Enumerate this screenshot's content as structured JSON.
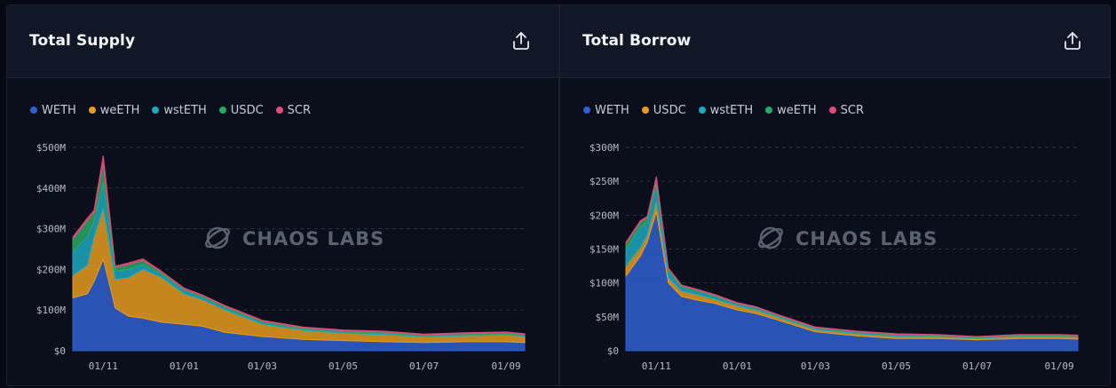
{
  "charts": [
    {
      "title": "Total Supply",
      "export_icon": "share-upload-icon",
      "legend": [
        {
          "name": "WETH",
          "color": "#2f5fd0"
        },
        {
          "name": "weETH",
          "color": "#e89b1e"
        },
        {
          "name": "wstETH",
          "color": "#1fa8c0"
        },
        {
          "name": "USDC",
          "color": "#2aa765"
        },
        {
          "name": "SCR",
          "color": "#e04a7a"
        }
      ],
      "watermark": "CHAOS LABS"
    },
    {
      "title": "Total Borrow",
      "export_icon": "share-upload-icon",
      "legend": [
        {
          "name": "WETH",
          "color": "#2f5fd0"
        },
        {
          "name": "USDC",
          "color": "#e89b1e"
        },
        {
          "name": "wstETH",
          "color": "#1fa8c0"
        },
        {
          "name": "weETH",
          "color": "#2aa765"
        },
        {
          "name": "SCR",
          "color": "#e04a7a"
        }
      ],
      "watermark": "CHAOS LABS"
    }
  ],
  "chart_data": [
    {
      "type": "area",
      "stacked": true,
      "title": "Total Supply",
      "x_tick_labels": [
        "01/11",
        "01/01",
        "01/03",
        "01/05",
        "01/07",
        "01/09"
      ],
      "x": [
        "09/10",
        "20/10",
        "25/10",
        "01/11",
        "10/11",
        "20/11",
        "01/12",
        "15/12",
        "01/01",
        "15/01",
        "01/02",
        "01/03",
        "01/04",
        "01/05",
        "01/06",
        "01/07",
        "01/08",
        "01/09",
        "15/09"
      ],
      "y_ticks": [
        "$0",
        "$100M",
        "$200M",
        "$300M",
        "$400M",
        "$500M"
      ],
      "ylim": [
        0,
        500
      ],
      "y_unit": "$M",
      "grid": true,
      "legend_position": "top-left",
      "series": [
        {
          "name": "WETH",
          "values": [
            130,
            140,
            170,
            225,
            105,
            85,
            80,
            70,
            65,
            60,
            45,
            35,
            28,
            25,
            22,
            20,
            22,
            22,
            20
          ]
        },
        {
          "name": "weETH",
          "values": [
            55,
            70,
            110,
            125,
            70,
            95,
            120,
            110,
            75,
            65,
            55,
            30,
            22,
            18,
            18,
            14,
            15,
            17,
            15
          ]
        },
        {
          "name": "wstETH",
          "values": [
            60,
            70,
            40,
            65,
            20,
            20,
            12,
            8,
            8,
            6,
            5,
            4,
            3,
            3,
            3,
            2,
            2,
            2,
            2
          ]
        },
        {
          "name": "USDC",
          "values": [
            30,
            40,
            20,
            45,
            10,
            12,
            10,
            5,
            4,
            4,
            4,
            4,
            3,
            3,
            3,
            3,
            3,
            3,
            3
          ]
        },
        {
          "name": "SCR",
          "values": [
            5,
            6,
            5,
            20,
            3,
            4,
            4,
            2,
            2,
            2,
            2,
            2,
            2,
            2,
            2,
            2,
            2,
            2,
            2
          ]
        }
      ]
    },
    {
      "type": "area",
      "stacked": true,
      "title": "Total Borrow",
      "x_tick_labels": [
        "01/11",
        "01/01",
        "01/03",
        "01/05",
        "01/07",
        "01/09"
      ],
      "x": [
        "09/10",
        "20/10",
        "25/10",
        "01/11",
        "10/11",
        "20/11",
        "01/12",
        "15/12",
        "01/01",
        "15/01",
        "01/02",
        "01/03",
        "01/04",
        "01/05",
        "01/06",
        "01/07",
        "01/08",
        "01/09",
        "15/09"
      ],
      "y_ticks": [
        "$0",
        "$50M",
        "$100M",
        "$150M",
        "$200M",
        "$250M",
        "$300M"
      ],
      "ylim": [
        0,
        300
      ],
      "y_unit": "$M",
      "grid": true,
      "legend_position": "top-left",
      "series": [
        {
          "name": "WETH",
          "values": [
            110,
            140,
            160,
            205,
            100,
            80,
            75,
            70,
            60,
            55,
            45,
            28,
            22,
            18,
            18,
            16,
            18,
            18,
            17
          ]
        },
        {
          "name": "USDC",
          "values": [
            15,
            12,
            10,
            15,
            8,
            8,
            8,
            6,
            6,
            5,
            4,
            3,
            3,
            3,
            3,
            2,
            3,
            3,
            3
          ]
        },
        {
          "name": "wstETH",
          "values": [
            25,
            30,
            20,
            25,
            10,
            6,
            5,
            4,
            3,
            3,
            2,
            2,
            2,
            2,
            1,
            1,
            1,
            1,
            1
          ]
        },
        {
          "name": "weETH",
          "values": [
            8,
            8,
            6,
            8,
            3,
            2,
            2,
            2,
            1,
            1,
            1,
            1,
            1,
            1,
            1,
            1,
            1,
            1,
            1
          ]
        },
        {
          "name": "SCR",
          "values": [
            2,
            2,
            2,
            4,
            1,
            1,
            1,
            1,
            1,
            1,
            1,
            1,
            1,
            1,
            1,
            1,
            1,
            1,
            1
          ]
        }
      ]
    }
  ]
}
